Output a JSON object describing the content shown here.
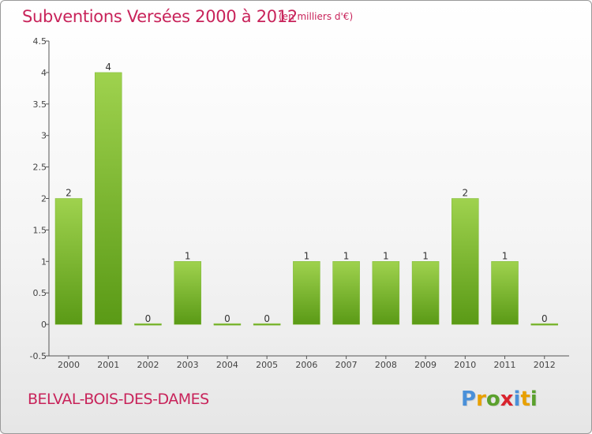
{
  "title": "Subventions Versées 2000 à 2012",
  "unit": "(en milliers d'€)",
  "commune": "BELVAL-BOIS-DES-DAMES",
  "brand": {
    "letters": [
      "P",
      "r",
      "o",
      "x",
      "i",
      "t",
      "i"
    ],
    "colors": [
      "#4a90d9",
      "#e8a000",
      "#5aa02c",
      "#d9232d",
      "#4a90d9",
      "#e8a000",
      "#5aa02c"
    ]
  },
  "colors": {
    "title": "#c8235a",
    "bar_top": "#9fd24e",
    "bar_bottom": "#5a9a16",
    "axis": "#555555"
  },
  "chart_data": {
    "type": "bar",
    "title": "Subventions Versées 2000 à 2012",
    "ylabel": "",
    "xlabel": "",
    "categories": [
      "2000",
      "2001",
      "2002",
      "2003",
      "2004",
      "2005",
      "2006",
      "2007",
      "2008",
      "2009",
      "2010",
      "2011",
      "2012"
    ],
    "values": [
      2,
      4,
      0,
      1,
      0,
      0,
      1,
      1,
      1,
      1,
      2,
      1,
      0
    ],
    "value_labels": [
      "2",
      "4",
      "0",
      "1",
      "0",
      "0",
      "1",
      "1",
      "1",
      "1",
      "2",
      "1",
      "0"
    ],
    "ylim": [
      -0.5,
      4.5
    ],
    "yticks": [
      -0.5,
      0,
      0.5,
      1,
      1.5,
      2,
      2.5,
      3,
      3.5,
      4,
      4.5
    ],
    "ytick_labels": [
      "-0.5",
      "0",
      "0.5",
      "1",
      "1.5",
      "2",
      "2.5",
      "3",
      "3.5",
      "4",
      "4.5"
    ],
    "grid": false,
    "legend": "none"
  }
}
